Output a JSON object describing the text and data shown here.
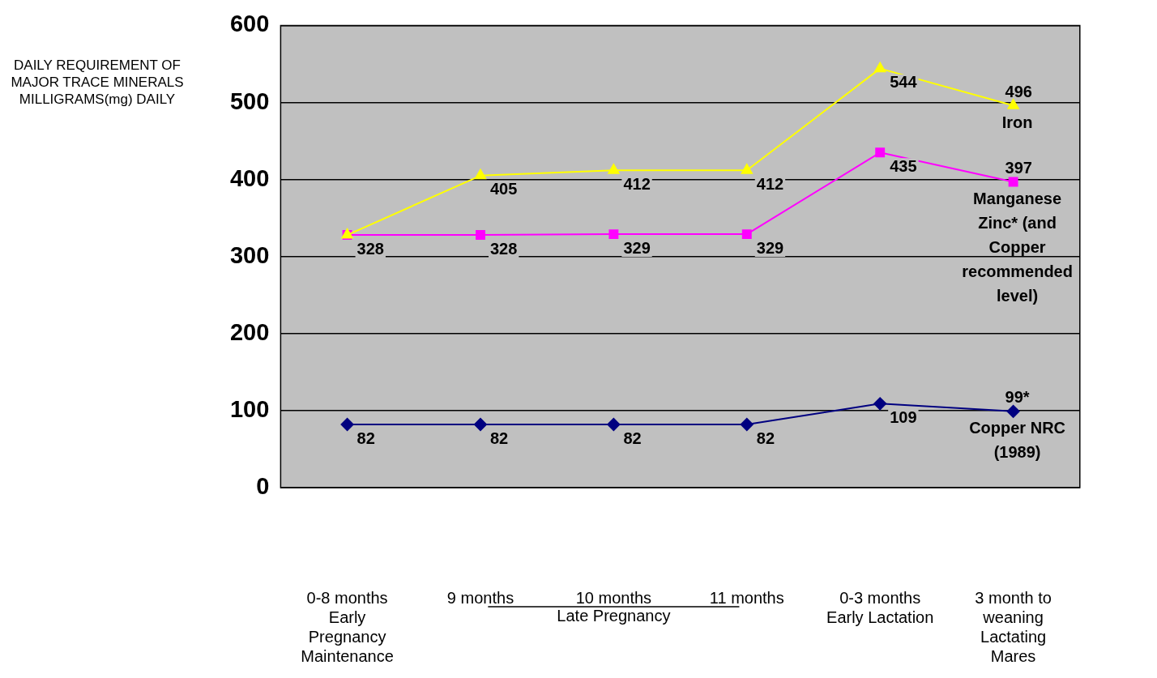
{
  "chart_data": {
    "type": "line",
    "ylabel": "DAILY REQUIREMENT OF MAJOR TRACE MINERALS MILLIGRAMS(mg) DAILY",
    "categories": [
      "0-8 months Early Pregnancy Maintenance",
      "9 months",
      "10 months",
      "11 months",
      "0-3 months Early Lactation",
      "3 month to weaning Lactating Mares"
    ],
    "series": [
      {
        "name": "Iron",
        "color": "#ffff00",
        "marker": "triangle",
        "values": [
          328,
          405,
          412,
          412,
          544,
          496
        ],
        "value_labels": [
          null,
          "405",
          "412",
          "412",
          "544",
          "496"
        ]
      },
      {
        "name": "Manganese Zinc* (and Copper recommended level)",
        "color": "#ff00ff",
        "marker": "square",
        "values": [
          328,
          328,
          329,
          329,
          435,
          397
        ],
        "value_labels": [
          "328",
          "328",
          "329",
          "329",
          "435",
          "397"
        ]
      },
      {
        "name": "Copper NRC (1989)",
        "color": "#000080",
        "marker": "diamond",
        "values": [
          82,
          82,
          82,
          82,
          109,
          99
        ],
        "value_labels": [
          "82",
          "82",
          "82",
          "82",
          "109",
          "99*"
        ]
      }
    ],
    "ylim": [
      0,
      600
    ],
    "yticks": [
      0,
      100,
      200,
      300,
      400,
      500,
      600
    ],
    "grid": "y",
    "legend": false,
    "line_style": "solid",
    "annotations": [
      "Late Pregnancy"
    ]
  }
}
